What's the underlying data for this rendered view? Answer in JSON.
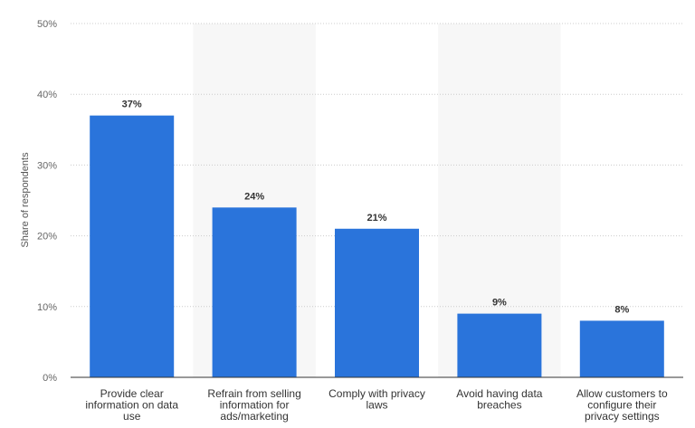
{
  "chart_data": {
    "type": "bar",
    "categories": [
      [
        "Provide clear",
        "information on data",
        "use"
      ],
      [
        "Refrain from selling",
        "information for",
        "ads/marketing"
      ],
      [
        "Comply with privacy",
        "laws"
      ],
      [
        "Avoid having data",
        "breaches"
      ],
      [
        "Allow customers to",
        "configure their",
        "privacy settings"
      ]
    ],
    "values": [
      37,
      24,
      21,
      9,
      8
    ],
    "value_labels": [
      "37%",
      "24%",
      "21%",
      "9%",
      "8%"
    ],
    "ylabel": "Share of respondents",
    "ylim": [
      0,
      50
    ],
    "yticks": [
      0,
      10,
      20,
      30,
      40,
      50
    ],
    "ytick_labels": [
      "0%",
      "10%",
      "20%",
      "30%",
      "40%",
      "50%"
    ],
    "grid": true,
    "bar_color": "#2a74db",
    "shade_color": "#f7f7f7"
  }
}
